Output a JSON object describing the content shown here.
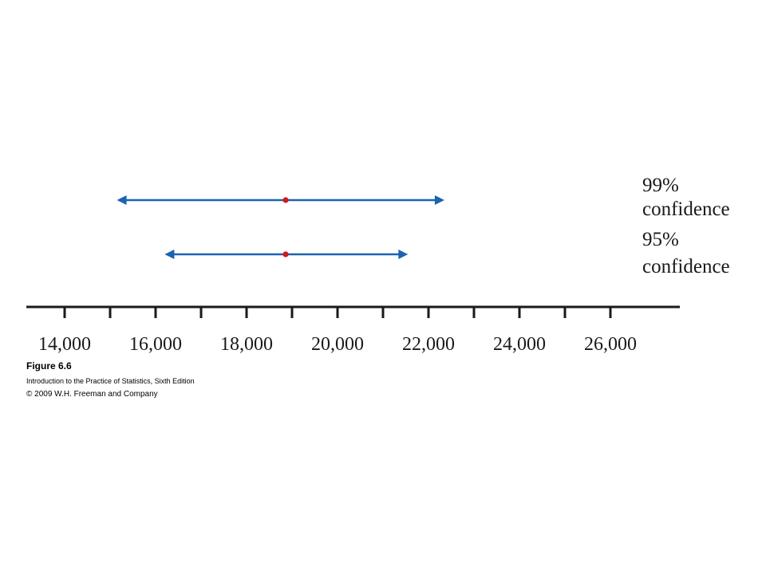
{
  "chart_data": {
    "type": "interval",
    "x_min": 13000,
    "x_max": 27000,
    "major_ticks": [
      14000,
      16000,
      18000,
      20000,
      22000,
      24000,
      26000
    ],
    "minor_ticks": [
      15000,
      17000,
      19000,
      21000,
      23000,
      25000
    ],
    "tick_labels": [
      "14,000",
      "16,000",
      "18,000",
      "20,000",
      "22,000",
      "24,000",
      "26,000"
    ],
    "series": [
      {
        "label_line1": "99%",
        "label_line2": "confidence",
        "center": 18860,
        "lower": 15150,
        "upper": 22350
      },
      {
        "label_line1": "95%",
        "label_line2": "confidence",
        "center": 18860,
        "lower": 16200,
        "upper": 21550
      }
    ],
    "colors": {
      "interval": "#1a64b0",
      "point": "#d11a1a",
      "axis": "#1a1a1a"
    }
  },
  "caption": {
    "title": "Figure 6.6",
    "book": "Introduction to the Practice of Statistics, Sixth Edition",
    "copyright": "© 2009 W.H. Freeman and Company"
  }
}
